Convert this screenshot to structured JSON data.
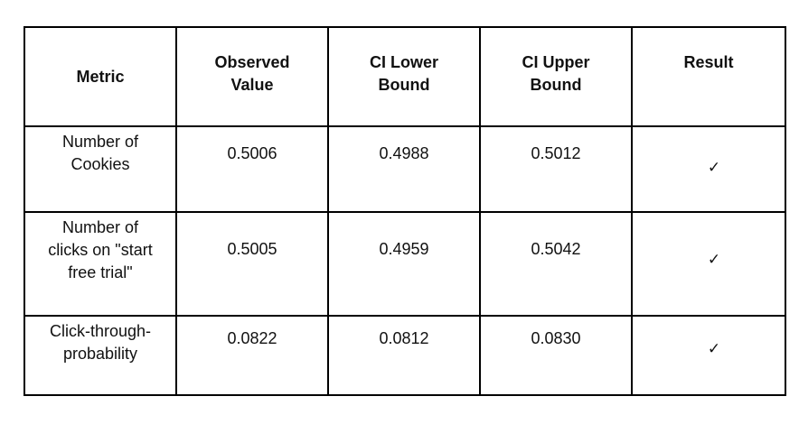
{
  "table": {
    "headers": {
      "metric": "Metric",
      "observed": "Observed\nValue",
      "ci_lower": "CI Lower\nBound",
      "ci_upper": "CI Upper\nBound",
      "result": "Result"
    },
    "rows": [
      {
        "metric": "Number of\nCookies",
        "observed": "0.5006",
        "ci_lower": "0.4988",
        "ci_upper": "0.5012",
        "result": "✓"
      },
      {
        "metric": "Number of\nclicks on \"start\nfree trial\"",
        "observed": "0.5005",
        "ci_lower": "0.4959",
        "ci_upper": "0.5042",
        "result": "✓"
      },
      {
        "metric": "Click-through-\nprobability",
        "observed": "0.0822",
        "ci_lower": "0.0812",
        "ci_upper": "0.0830",
        "result": "✓"
      }
    ]
  }
}
